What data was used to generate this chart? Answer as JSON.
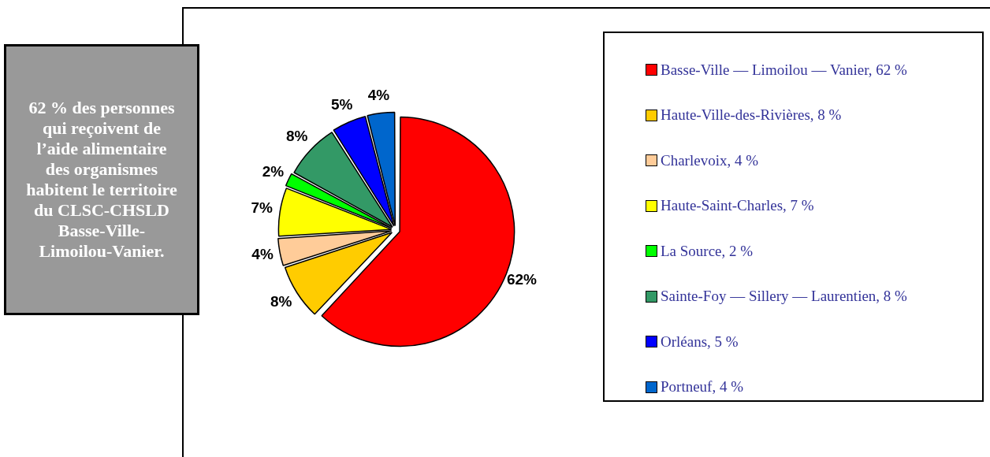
{
  "chart_data": {
    "type": "pie",
    "categories": [
      "Basse-Ville — Limoilou — Vanier, 62 %",
      "Haute-Ville-des-Rivières, 8 %",
      "Charlevoix, 4 %",
      "Haute-Saint-Charles, 7 %",
      "La Source, 2 %",
      "Sainte-Foy — Sillery — Laurentien, 8 %",
      "Orléans, 5 %",
      "Portneuf, 4 %"
    ],
    "values": [
      62,
      8,
      4,
      7,
      2,
      8,
      5,
      4
    ],
    "colors": [
      "#ff0000",
      "#ffcc00",
      "#ffcc99",
      "#ffff00",
      "#00ff00",
      "#339966",
      "#0000ff",
      "#0066cc"
    ],
    "value_labels": [
      "62%",
      "8%",
      "4%",
      "7%",
      "2%",
      "8%",
      "5%",
      "4%"
    ],
    "legend": "right",
    "annotations": [
      "62 % des personnes qui reçoivent de l’aide alimentaire des organismes habitent le territoire du CLSC-CHSLD Basse-Ville-Limoilou-Vanier."
    ]
  }
}
